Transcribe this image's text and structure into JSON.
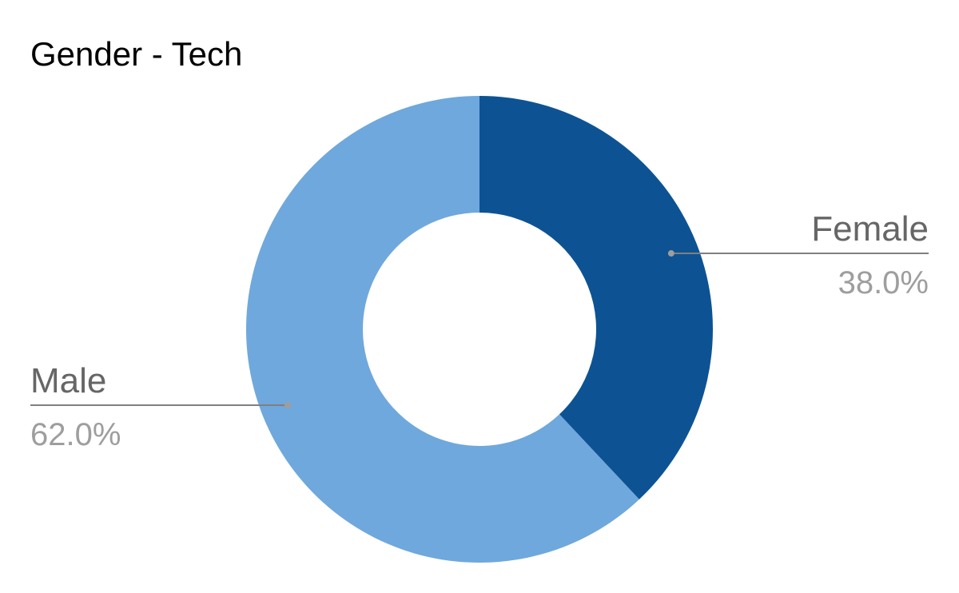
{
  "chart_data": {
    "type": "pie",
    "title": "Gender - Tech",
    "donut": true,
    "slices": [
      {
        "label": "Female",
        "value": 38.0,
        "value_label": "38.0%",
        "color": "#0d5394"
      },
      {
        "label": "Male",
        "value": 62.0,
        "value_label": "62.0%",
        "color": "#6fa8dc"
      }
    ],
    "legend": "none",
    "label_line_color": "#808080"
  }
}
